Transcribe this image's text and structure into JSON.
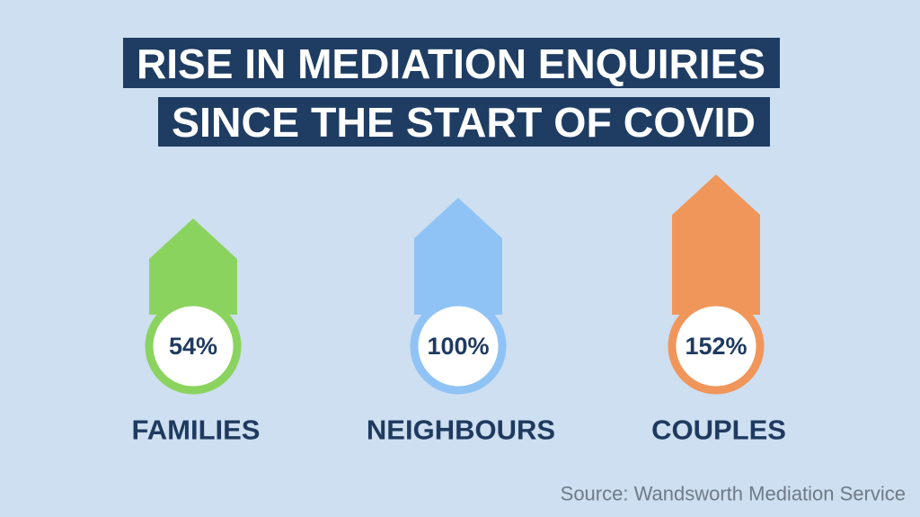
{
  "chart_data": {
    "type": "arrow",
    "title": [
      "RISE IN MEDIATION ENQUIRIES",
      "SINCE THE START OF COVID"
    ],
    "categories": [
      "FAMILIES",
      "NEIGHBOURS",
      "COUPLES"
    ],
    "values": [
      54,
      100,
      152
    ],
    "value_labels": [
      "54%",
      "100%",
      "152%"
    ],
    "colors": [
      "#8bd35f",
      "#90c3f5",
      "#f0965a"
    ],
    "source": "Source: Wandsworth Mediation Service"
  }
}
